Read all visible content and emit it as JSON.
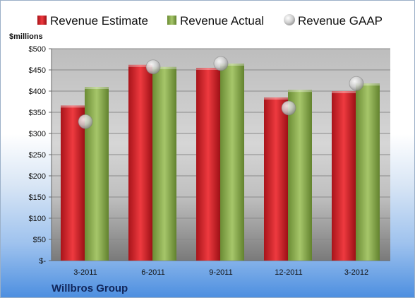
{
  "chart_data": {
    "type": "bar",
    "company": "Willbros Group",
    "y_unit_label": "$millions",
    "categories": [
      "3-2011",
      "6-2011",
      "9-2011",
      "12-2011",
      "3-2012"
    ],
    "series": [
      {
        "name": "Revenue Estimate",
        "kind": "bar",
        "color": "#d8232a",
        "values": [
          366,
          462,
          455,
          385,
          400
        ]
      },
      {
        "name": "Revenue Actual",
        "kind": "bar",
        "color": "#8db04d",
        "values": [
          410,
          457,
          465,
          403,
          418
        ]
      },
      {
        "name": "Revenue GAAP",
        "kind": "marker",
        "color": "#c8c8c8",
        "values": [
          328,
          457,
          465,
          360,
          418
        ]
      }
    ],
    "ylim": [
      0,
      500
    ],
    "y_ticks": [
      0,
      50,
      100,
      150,
      200,
      250,
      300,
      350,
      400,
      450,
      500
    ],
    "y_tick_labels": [
      "$-",
      "$50",
      "$100",
      "$150",
      "$200",
      "$250",
      "$300",
      "$350",
      "$400",
      "$450",
      "$500"
    ],
    "grid": true,
    "legend": "top"
  }
}
